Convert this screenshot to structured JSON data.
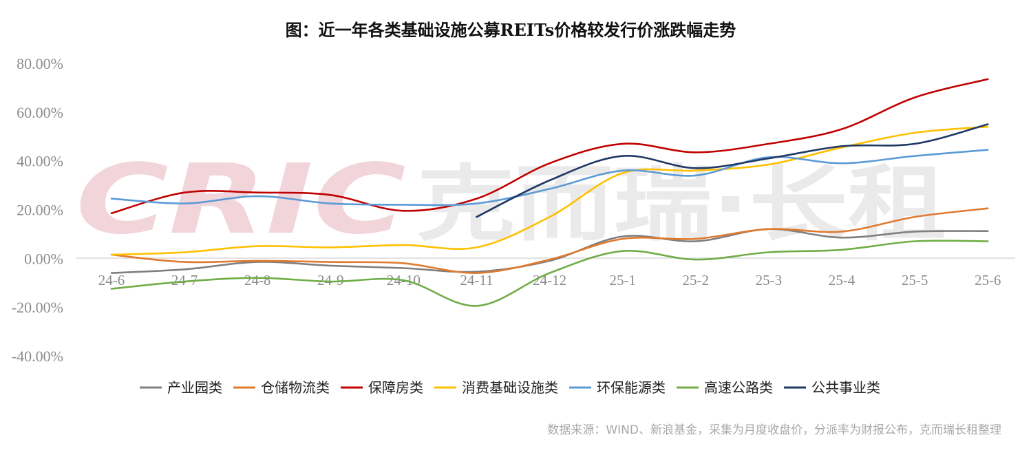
{
  "watermark": {
    "latin": "CRIC",
    "cjk": "克而瑞·长租"
  },
  "source": "数据来源：WIND、新浪基金，采集为月度收盘价，分派率为财报公布，克而瑞长租整理",
  "chart_data": {
    "type": "line",
    "title": "图：近一年各类基础设施公募REITs价格较发行价涨跌幅走势",
    "xlabel": "",
    "ylabel": "",
    "categories": [
      "24-6",
      "24-7",
      "24-8",
      "24-9",
      "24-10",
      "24-11",
      "24-12",
      "25-1",
      "25-2",
      "25-3",
      "25-4",
      "25-5",
      "25-6"
    ],
    "yticks": [
      "80.00%",
      "60.00%",
      "40.00%",
      "20.00%",
      "0.00%",
      "-20.00%",
      "-40.00%"
    ],
    "ylim": [
      -40,
      80
    ],
    "grid": false,
    "legend_position": "bottom",
    "series": [
      {
        "name": "产业园类",
        "color": "#7f7f7f",
        "values": [
          -6,
          -4.5,
          -1.5,
          -3,
          -4,
          -5.5,
          -1,
          9,
          7,
          12,
          8.5,
          11,
          11.2
        ]
      },
      {
        "name": "仓储物流类",
        "color": "#e07a2f",
        "values": [
          1.5,
          -1.5,
          -1,
          -1.5,
          -2,
          -6,
          -0.5,
          8,
          8,
          12,
          11,
          17,
          20.5
        ]
      },
      {
        "name": "保障房类",
        "color": "#c00000",
        "values": [
          18.5,
          27,
          27,
          26,
          19.5,
          24.5,
          39,
          47,
          43.5,
          47,
          53,
          66,
          73.5
        ]
      },
      {
        "name": "消费基础设施类",
        "color": "#ffc000",
        "values": [
          1.5,
          2.5,
          5,
          4.5,
          5.5,
          4.5,
          17,
          35,
          36,
          38.5,
          45.5,
          51.5,
          54
        ]
      },
      {
        "name": "环保能源类",
        "color": "#5b9bd5",
        "values": [
          24.5,
          22.5,
          25.5,
          22.5,
          22,
          22.5,
          28.5,
          36,
          34,
          41.5,
          39,
          42,
          44.5
        ]
      },
      {
        "name": "高速公路类",
        "color": "#70ad47",
        "values": [
          -12.5,
          -9.5,
          -8,
          -9.5,
          -9,
          -19.5,
          -6,
          3,
          -0.5,
          2.5,
          3.5,
          7,
          7
        ]
      },
      {
        "name": "公共事业类",
        "color": "#1f3864",
        "values": [
          null,
          null,
          null,
          null,
          null,
          17,
          32,
          42,
          37,
          41,
          46,
          47,
          55
        ]
      }
    ]
  }
}
